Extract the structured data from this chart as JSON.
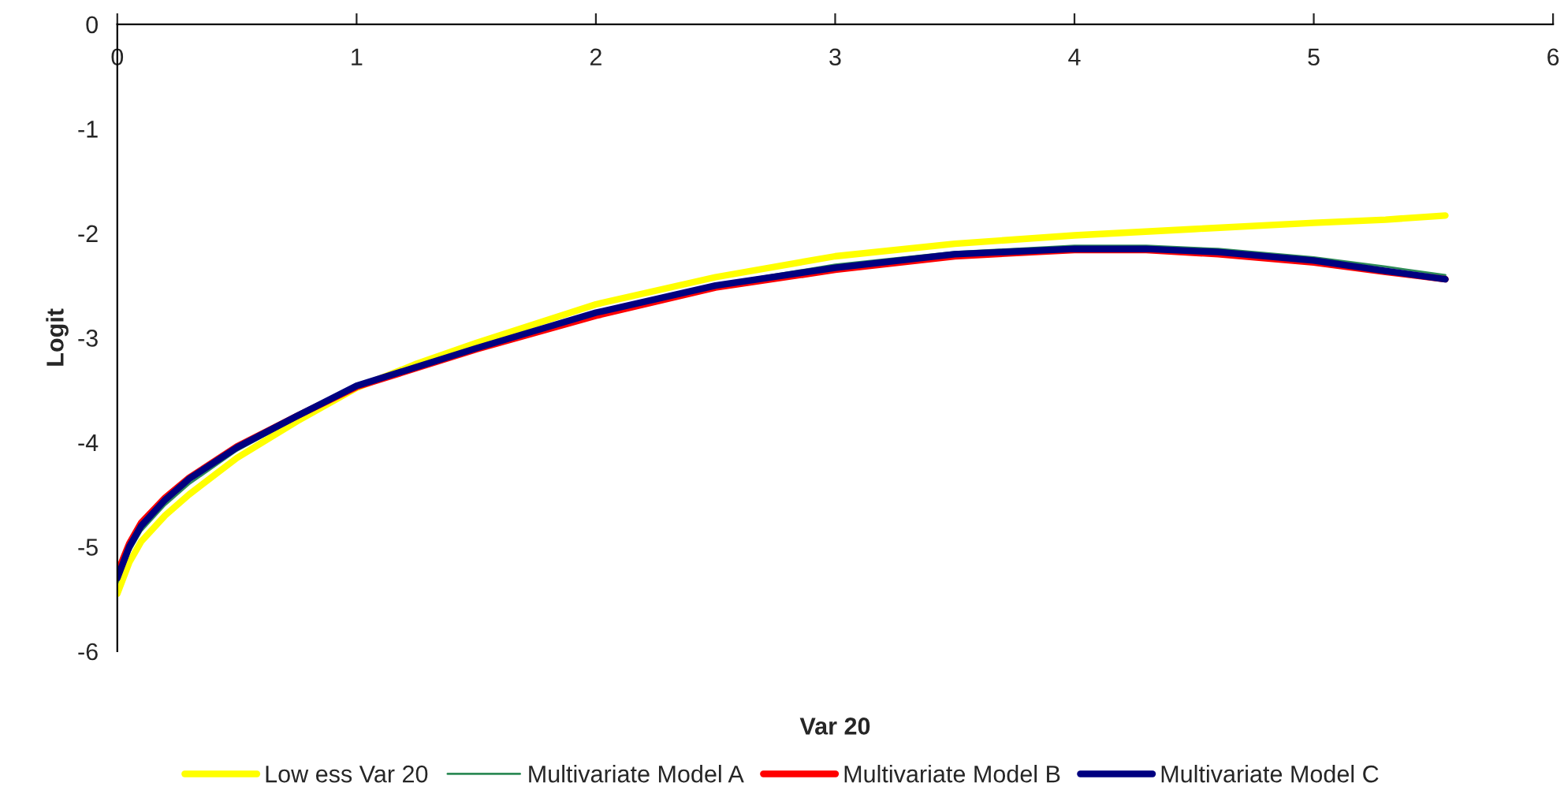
{
  "chart_data": {
    "type": "line",
    "xlabel": "Var 20",
    "ylabel": "Logit",
    "xlim": [
      0,
      6
    ],
    "xticks": [
      0,
      1,
      2,
      3,
      4,
      5,
      6
    ],
    "ylim": [
      -6,
      0
    ],
    "yticks": [
      {
        "value": -6,
        "label": "-6"
      },
      {
        "value": -5,
        "label": "-5"
      },
      {
        "value": -4,
        "label": "-4"
      },
      {
        "value": -3,
        "label": "-3"
      },
      {
        "value": -2,
        "label": "-2"
      },
      {
        "value": -1,
        "label": "-1"
      },
      {
        "value": 0,
        "label": "0"
      }
    ],
    "grid": false,
    "legend": "bottom",
    "marker": "none",
    "line_style": "solid",
    "series": [
      {
        "name": "Low ess Var 20",
        "color": "#ffff00",
        "x": [
          0,
          0.05,
          0.1,
          0.2,
          0.3,
          0.5,
          0.75,
          1,
          1.25,
          1.5,
          2,
          2.5,
          3,
          3.5,
          4,
          4.5,
          5,
          5.3,
          5.55
        ],
        "values": [
          -5.45,
          -5.15,
          -4.95,
          -4.7,
          -4.5,
          -4.15,
          -3.8,
          -3.48,
          -3.25,
          -3.05,
          -2.68,
          -2.42,
          -2.22,
          -2.1,
          -2.02,
          -1.96,
          -1.9,
          -1.87,
          -1.83
        ]
      },
      {
        "name": "Multivariate Model A",
        "color": "#2e8b57",
        "x": [
          0,
          0.05,
          0.1,
          0.2,
          0.3,
          0.5,
          0.75,
          1,
          1.25,
          1.5,
          2,
          2.5,
          3,
          3.5,
          4,
          4.3,
          4.6,
          5,
          5.3,
          5.55
        ],
        "values": [
          -5.35,
          -5.05,
          -4.85,
          -4.6,
          -4.4,
          -4.08,
          -3.77,
          -3.48,
          -3.28,
          -3.09,
          -2.76,
          -2.49,
          -2.3,
          -2.18,
          -2.12,
          -2.12,
          -2.15,
          -2.23,
          -2.32,
          -2.4
        ]
      },
      {
        "name": "Multivariate Model B",
        "color": "#ff0000",
        "x": [
          0,
          0.05,
          0.1,
          0.2,
          0.3,
          0.5,
          0.75,
          1,
          1.25,
          1.5,
          2,
          2.5,
          3,
          3.5,
          4,
          4.3,
          4.6,
          5,
          5.3,
          5.55
        ],
        "values": [
          -5.25,
          -4.97,
          -4.77,
          -4.53,
          -4.34,
          -4.04,
          -3.75,
          -3.47,
          -3.29,
          -3.11,
          -2.79,
          -2.52,
          -2.35,
          -2.22,
          -2.16,
          -2.16,
          -2.2,
          -2.28,
          -2.37,
          -2.44
        ]
      },
      {
        "name": "Multivariate Model C",
        "color": "#000080",
        "x": [
          0,
          0.05,
          0.1,
          0.2,
          0.3,
          0.5,
          0.75,
          1,
          1.25,
          1.5,
          2,
          2.5,
          3,
          3.5,
          4,
          4.3,
          4.6,
          5,
          5.3,
          5.55
        ],
        "values": [
          -5.3,
          -5.0,
          -4.8,
          -4.55,
          -4.35,
          -4.05,
          -3.75,
          -3.46,
          -3.28,
          -3.1,
          -2.76,
          -2.5,
          -2.33,
          -2.2,
          -2.15,
          -2.15,
          -2.18,
          -2.26,
          -2.36,
          -2.44
        ]
      }
    ]
  }
}
